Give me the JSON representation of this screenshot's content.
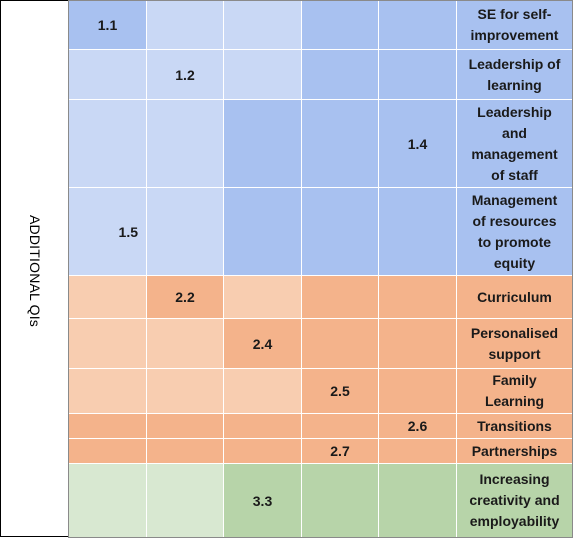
{
  "sidebar": {
    "label": "ADDITIONAL QIs"
  },
  "colors": {
    "blue_light": "#c9d8f5",
    "blue_dark": "#a8c1f0",
    "orange_light": "#f8cdb0",
    "orange_dark": "#f4b38b",
    "green_light": "#d8e8d1",
    "green_dark": "#b7d4a9"
  },
  "rows": [
    {
      "label": "SE for self-improvement",
      "label_lines": [
        "SE for self-",
        "improvement"
      ],
      "code": "1.1",
      "code_col": 1
    },
    {
      "label": "Leadership of learning",
      "label_lines": [
        "Leadership of",
        "learning"
      ],
      "code": "1.2",
      "code_col": 2
    },
    {
      "label": "Leadership and management of staff",
      "label_lines": [
        "Leadership",
        "and",
        "management",
        "of staff"
      ],
      "code": "1.4",
      "code_col": 5
    },
    {
      "label": "Management of resources to promote equity",
      "label_lines": [
        "Management",
        "of resources",
        "to promote",
        "equity"
      ],
      "code": "1.5",
      "code_col": 1
    },
    {
      "label": "Curriculum",
      "label_lines": [
        "Curriculum"
      ],
      "code": "2.2",
      "code_col": 2
    },
    {
      "label": "Personalised support",
      "label_lines": [
        "Personalised",
        "support"
      ],
      "code": "2.4",
      "code_col": 3
    },
    {
      "label": "Family Learning",
      "label_lines": [
        "Family",
        "Learning"
      ],
      "code": "2.5",
      "code_col": 4
    },
    {
      "label": "Transitions",
      "label_lines": [
        "Transitions"
      ],
      "code": "2.6",
      "code_col": 5
    },
    {
      "label": "Partnerships",
      "label_lines": [
        "Partnerships"
      ],
      "code": "2.7",
      "code_col": 4
    },
    {
      "label": "Increasing creativity and employability",
      "label_lines": [
        "Increasing",
        "creativity and",
        "employability"
      ],
      "code": "3.3",
      "code_col": 3
    }
  ]
}
